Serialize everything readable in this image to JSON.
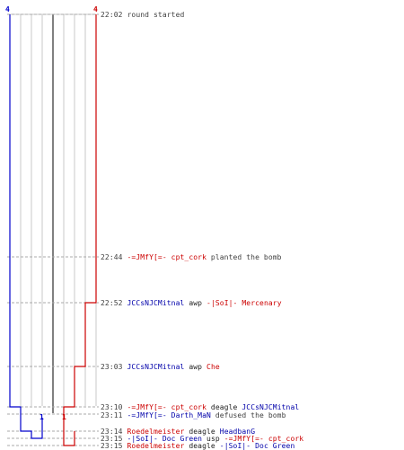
{
  "colors": {
    "team_t": "#cc0000",
    "team_ct": "#0000cc",
    "grid": "#c8c8c8",
    "dash": "#aaaaaa",
    "bomb_line": "#808080",
    "text": "#404040"
  },
  "counters": {
    "ct_start": "4",
    "t_start": "4",
    "ct_mid": "1",
    "t_mid": "1"
  },
  "events": [
    {
      "time": "22:02",
      "text": "round started"
    },
    {
      "time": "22:44",
      "actor": "-=JMfY[=- cpt_cork",
      "text": " planted the bomb"
    },
    {
      "time": "22:52",
      "killer": "JCCsNJCMitnal",
      "weapon": " awp ",
      "victim": "-|SoI|- Mercenary"
    },
    {
      "time": "23:03",
      "killer": "JCCsNJCMitnal",
      "weapon": " awp ",
      "victim": "Che"
    },
    {
      "time": "23:10",
      "killer": "-=JMfY[=- cpt_cork",
      "weapon": " deagle ",
      "victim": "JCCsNJCMitnal"
    },
    {
      "time": "23:11",
      "actor": "-=JMfY[=- Darth_MaN",
      "text": " defused the bomb"
    },
    {
      "time": "23:14",
      "killer": "Roedelmeister",
      "weapon": " deagle ",
      "victim": "HeadbanG"
    },
    {
      "time": "23:15",
      "killer": "-|SoI|- Doc Green",
      "weapon": " usp ",
      "victim": "-=JMfY[=- cpt_cork"
    },
    {
      "time": "23:15",
      "killer": "Roedelmeister",
      "weapon": " deagle ",
      "victim": "-|SoI|- Doc Green"
    }
  ]
}
